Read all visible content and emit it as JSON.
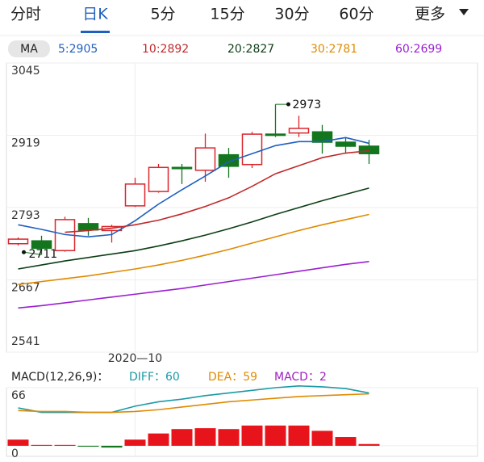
{
  "tabs": [
    "分时",
    "日K",
    "5分",
    "15分",
    "30分",
    "60分",
    "更多"
  ],
  "selected_tab": 1,
  "ma_label": "MA",
  "chart_data": [
    {
      "type": "candlestick",
      "categories": [
        null,
        null,
        null,
        null,
        null,
        "2020—10",
        null,
        null,
        null,
        null,
        null,
        null,
        null,
        null,
        null,
        null
      ],
      "open": [
        2730,
        2735,
        2718,
        2765,
        2753,
        2796,
        2821,
        2863,
        2858,
        2885,
        2868,
        2921,
        2923,
        2925,
        2907,
        2900
      ],
      "high": [
        2741,
        2744,
        2777,
        2775,
        2763,
        2845,
        2869,
        2869,
        2922,
        2897,
        2925,
        2973,
        2953,
        2937,
        2915,
        2911
      ],
      "low": [
        2727,
        2711,
        2716,
        2744,
        2732,
        2794,
        2819,
        2834,
        2838,
        2845,
        2862,
        2916,
        2916,
        2887,
        2887,
        2869
      ],
      "close": [
        2738,
        2722,
        2772,
        2754,
        2760,
        2834,
        2863,
        2861,
        2897,
        2865,
        2921,
        2919,
        2931,
        2907,
        2900,
        2887
      ],
      "up_color": "#d9262c",
      "down_color": "#13761f",
      "ylim": [
        2541,
        3045
      ],
      "yticks": [
        3045,
        2919,
        2793,
        2667,
        2541
      ],
      "grid": true,
      "max_label": 2973,
      "min_label": 2711,
      "series": [
        {
          "name": "5:2905",
          "color": "#1f5fbf",
          "values": [
            2763,
            2755,
            2746,
            2742,
            2746,
            2770,
            2799,
            2824,
            2848,
            2873,
            2887,
            2901,
            2908,
            2908,
            2915,
            2905
          ]
        },
        {
          "name": "10:2892",
          "color": "#c0282b",
          "values": [
            null,
            null,
            2750,
            2753,
            2757,
            2763,
            2771,
            2782,
            2795,
            2810,
            2830,
            2852,
            2866,
            2880,
            2888,
            2892
          ]
        },
        {
          "name": "20:2827",
          "color": "#0c3d14",
          "values": [
            2686,
            2693,
            2700,
            2706,
            2712,
            2718,
            2726,
            2735,
            2745,
            2756,
            2768,
            2781,
            2793,
            2805,
            2816,
            2827
          ]
        },
        {
          "name": "30:2781",
          "color": "#e08a00",
          "values": [
            2659,
            2664,
            2669,
            2674,
            2680,
            2686,
            2693,
            2701,
            2710,
            2720,
            2731,
            2742,
            2753,
            2763,
            2772,
            2781
          ]
        },
        {
          "name": "60:2699",
          "color": "#9b1fd0",
          "values": [
            2618,
            2622,
            2627,
            2632,
            2637,
            2642,
            2647,
            2652,
            2658,
            2664,
            2670,
            2676,
            2682,
            2688,
            2694,
            2699
          ]
        }
      ]
    },
    {
      "type": "macd",
      "title": "MACD(12,26,9)：",
      "ylim": [
        -12,
        66
      ],
      "yticks": [
        66,
        0
      ],
      "series": [
        {
          "name": "DIFF：60",
          "type": "line",
          "color": "#1b9aa5",
          "values": [
            43,
            38,
            38,
            38,
            38,
            45,
            50,
            53,
            57,
            60,
            63,
            66,
            68,
            67,
            65,
            60
          ]
        },
        {
          "name": "DEA：59",
          "type": "line",
          "color": "#e08a00",
          "values": [
            40,
            39,
            39,
            38,
            38,
            39,
            41,
            44,
            47,
            50,
            52,
            54,
            56,
            57,
            58,
            59
          ]
        },
        {
          "name": "MACD：2",
          "type": "bar",
          "color": "#a020c0",
          "up_color": "#e8141c",
          "down_color": "#13761f",
          "values": [
            7,
            1,
            1,
            -1,
            -2,
            7,
            14,
            19,
            20,
            19,
            23,
            23,
            23,
            17,
            10,
            2
          ]
        }
      ]
    }
  ]
}
